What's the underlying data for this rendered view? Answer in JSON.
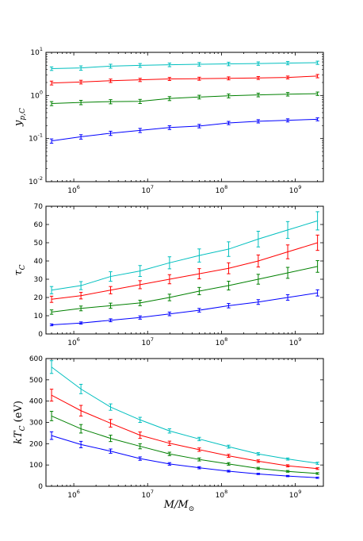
{
  "x_axis": {
    "label_main": "M/M",
    "label_sub": "⊙",
    "ticks": [
      {
        "value": 1000000,
        "label": "10",
        "exp": "6"
      },
      {
        "value": 10000000,
        "label": "10",
        "exp": "7"
      },
      {
        "value": 100000000,
        "label": "10",
        "exp": "8"
      },
      {
        "value": 1000000000,
        "label": "10",
        "exp": "9"
      }
    ]
  },
  "colors": {
    "s0": "#0000ff",
    "s1": "#008000",
    "s2": "#ff0000",
    "s3": "#00bfbf"
  },
  "chart_data": [
    {
      "type": "line",
      "x": [
        500000,
        1250000,
        3150000,
        7900000,
        19800000,
        50000000,
        125000000,
        315000000,
        790000000,
        2000000000
      ],
      "xlim": [
        420000,
        2400000000
      ],
      "xscale": "log",
      "ylabel_main": "y",
      "ylabel_sub": "p,C",
      "yscale": "log",
      "ylim": [
        0.01,
        10
      ],
      "yticks": [
        {
          "value": 0.01,
          "label": "10",
          "exp": "-2"
        },
        {
          "value": 0.1,
          "label": "10",
          "exp": "-1"
        },
        {
          "value": 1,
          "label": "10",
          "exp": "0"
        },
        {
          "value": 10,
          "label": "10",
          "exp": "1"
        }
      ],
      "series": [
        {
          "color": "#0000ff",
          "values": [
            0.088,
            0.11,
            0.133,
            0.155,
            0.18,
            0.195,
            0.23,
            0.252,
            0.265,
            0.28
          ],
          "errors": [
            0.01,
            0.013,
            0.015,
            0.017,
            0.018,
            0.018,
            0.02,
            0.022,
            0.022,
            0.022
          ]
        },
        {
          "color": "#008000",
          "values": [
            0.65,
            0.69,
            0.72,
            0.73,
            0.85,
            0.92,
            0.98,
            1.03,
            1.07,
            1.1
          ],
          "errors": [
            0.07,
            0.08,
            0.08,
            0.08,
            0.09,
            0.09,
            0.1,
            0.1,
            0.1,
            0.1
          ]
        },
        {
          "color": "#ff0000",
          "values": [
            1.95,
            2.05,
            2.2,
            2.3,
            2.42,
            2.45,
            2.5,
            2.55,
            2.62,
            2.82
          ],
          "errors": [
            0.2,
            0.2,
            0.2,
            0.2,
            0.2,
            0.2,
            0.2,
            0.2,
            0.2,
            0.25
          ]
        },
        {
          "color": "#00bfbf",
          "values": [
            4.2,
            4.35,
            4.8,
            5.0,
            5.15,
            5.3,
            5.4,
            5.5,
            5.65,
            5.75
          ],
          "errors": [
            0.4,
            0.5,
            0.5,
            0.5,
            0.5,
            0.5,
            0.5,
            0.5,
            0.5,
            0.5
          ]
        }
      ]
    },
    {
      "type": "line",
      "x": [
        500000,
        1250000,
        3150000,
        7900000,
        19800000,
        50000000,
        125000000,
        315000000,
        790000000,
        2000000000
      ],
      "xlim": [
        420000,
        2400000000
      ],
      "xscale": "log",
      "ylabel_main": "τ",
      "ylabel_sub": "C",
      "yscale": "linear",
      "ylim": [
        0,
        70
      ],
      "yticks": [
        {
          "value": 0,
          "label": "0"
        },
        {
          "value": 10,
          "label": "10"
        },
        {
          "value": 20,
          "label": "20"
        },
        {
          "value": 30,
          "label": "30"
        },
        {
          "value": 40,
          "label": "40"
        },
        {
          "value": 50,
          "label": "50"
        },
        {
          "value": 60,
          "label": "60"
        },
        {
          "value": 70,
          "label": "70"
        }
      ],
      "series": [
        {
          "color": "#0000ff",
          "values": [
            5,
            6,
            7.5,
            9,
            11,
            13,
            15.5,
            17.5,
            20,
            22.5
          ],
          "errors": [
            0.5,
            0.6,
            0.8,
            0.9,
            1,
            1,
            1.2,
            1.3,
            1.5,
            1.7
          ]
        },
        {
          "color": "#008000",
          "values": [
            12,
            14,
            15.5,
            17,
            20,
            23.5,
            26.5,
            30,
            33.5,
            37
          ],
          "errors": [
            1.2,
            1.3,
            1.4,
            1.5,
            1.8,
            2,
            2.4,
            2.7,
            3,
            3.2
          ]
        },
        {
          "color": "#ff0000",
          "values": [
            19,
            21,
            24,
            27,
            30,
            33,
            36,
            40,
            45,
            50
          ],
          "errors": [
            1.7,
            1.8,
            2,
            2.2,
            2.5,
            2.8,
            3,
            3.3,
            3.8,
            4.2
          ]
        },
        {
          "color": "#00bfbf",
          "values": [
            24,
            26.5,
            31.5,
            34.5,
            39,
            43,
            46.5,
            52,
            57,
            62
          ],
          "errors": [
            2,
            2.2,
            2.6,
            3,
            3.3,
            3.6,
            4,
            4.3,
            4.6,
            5
          ]
        }
      ]
    },
    {
      "type": "line",
      "x": [
        500000,
        1250000,
        3150000,
        7900000,
        19800000,
        50000000,
        125000000,
        315000000,
        790000000,
        2000000000
      ],
      "xlim": [
        420000,
        2400000000
      ],
      "xscale": "log",
      "ylabel_main": "kT",
      "ylabel_sub": "C",
      "ylabel_suffix": " (eV)",
      "yscale": "linear",
      "ylim": [
        0,
        600
      ],
      "yticks": [
        {
          "value": 0,
          "label": "0"
        },
        {
          "value": 100,
          "label": "100"
        },
        {
          "value": 200,
          "label": "200"
        },
        {
          "value": 300,
          "label": "300"
        },
        {
          "value": 400,
          "label": "400"
        },
        {
          "value": 500,
          "label": "500"
        },
        {
          "value": 600,
          "label": "600"
        }
      ],
      "series": [
        {
          "color": "#0000ff",
          "values": [
            238,
            196,
            165,
            130,
            105,
            87,
            71,
            58,
            48,
            40
          ],
          "errors": [
            18,
            15,
            10,
            8,
            6,
            5,
            4,
            3,
            3,
            3
          ]
        },
        {
          "color": "#008000",
          "values": [
            330,
            270,
            225,
            188,
            152,
            126,
            105,
            84,
            70,
            60
          ],
          "errors": [
            22,
            20,
            15,
            12,
            8,
            7,
            6,
            5,
            4,
            4
          ]
        },
        {
          "color": "#ff0000",
          "values": [
            428,
            355,
            296,
            240,
            202,
            172,
            143,
            118,
            96,
            83
          ],
          "errors": [
            28,
            25,
            18,
            15,
            10,
            8,
            7,
            6,
            5,
            4
          ]
        },
        {
          "color": "#00bfbf",
          "values": [
            560,
            457,
            372,
            312,
            260,
            222,
            186,
            152,
            128,
            108
          ],
          "errors": [
            30,
            22,
            15,
            12,
            10,
            8,
            7,
            6,
            5,
            5
          ]
        }
      ]
    }
  ]
}
